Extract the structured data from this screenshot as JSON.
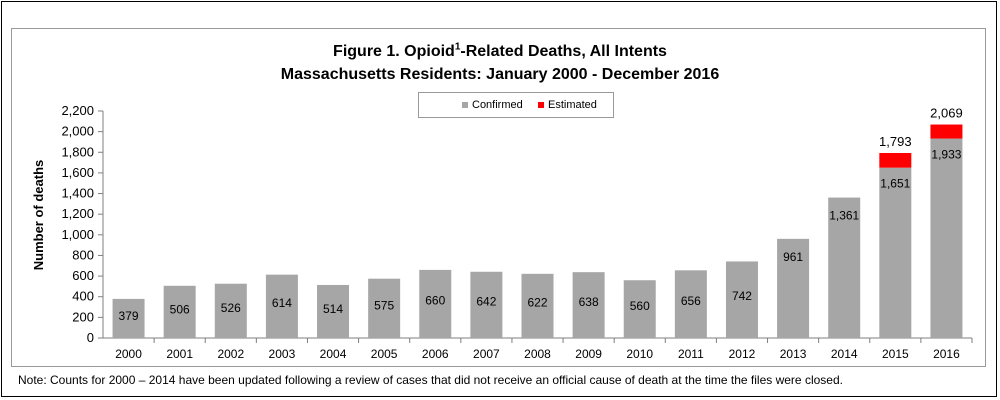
{
  "chart_data": {
    "type": "bar",
    "title_prefix": "Figure 1. Opioid",
    "title_sup": "1",
    "title_suffix": "-Related Deaths, All Intents",
    "subtitle": "Massachusetts Residents: January 2000 - December 2016",
    "xlabel": "",
    "ylabel": "Number of deaths",
    "ylim": [
      0,
      2200
    ],
    "yticks": [
      "0",
      "200",
      "400",
      "600",
      "800",
      "1,000",
      "1,200",
      "1,400",
      "1,600",
      "1,800",
      "2,000",
      "2,200"
    ],
    "legend_placement": "top-center",
    "categories": [
      "2000",
      "2001",
      "2002",
      "2003",
      "2004",
      "2005",
      "2006",
      "2007",
      "2008",
      "2009",
      "2010",
      "2011",
      "2012",
      "2013",
      "2014",
      "2015",
      "2016"
    ],
    "series": [
      {
        "name": "Confirmed",
        "color": "#a6a6a6",
        "values": [
          379,
          506,
          526,
          614,
          514,
          575,
          660,
          642,
          622,
          638,
          560,
          656,
          742,
          961,
          1361,
          1651,
          1933
        ],
        "labels": [
          "379",
          "506",
          "526",
          "614",
          "514",
          "575",
          "660",
          "642",
          "622",
          "638",
          "560",
          "656",
          "742",
          "961",
          "1,361",
          "1,651",
          "1,933"
        ]
      },
      {
        "name": "Estimated",
        "color": "#ff0000",
        "values": [
          0,
          0,
          0,
          0,
          0,
          0,
          0,
          0,
          0,
          0,
          0,
          0,
          0,
          0,
          0,
          142,
          136
        ]
      }
    ],
    "totals": [
      {
        "category": "2015",
        "value": 1793,
        "label": "1,793"
      },
      {
        "category": "2016",
        "value": 2069,
        "label": "2,069"
      }
    ]
  },
  "note": "Note: Counts for 2000 – 2014 have been updated following a review of cases that did not receive an official cause of death at the time the files were closed."
}
